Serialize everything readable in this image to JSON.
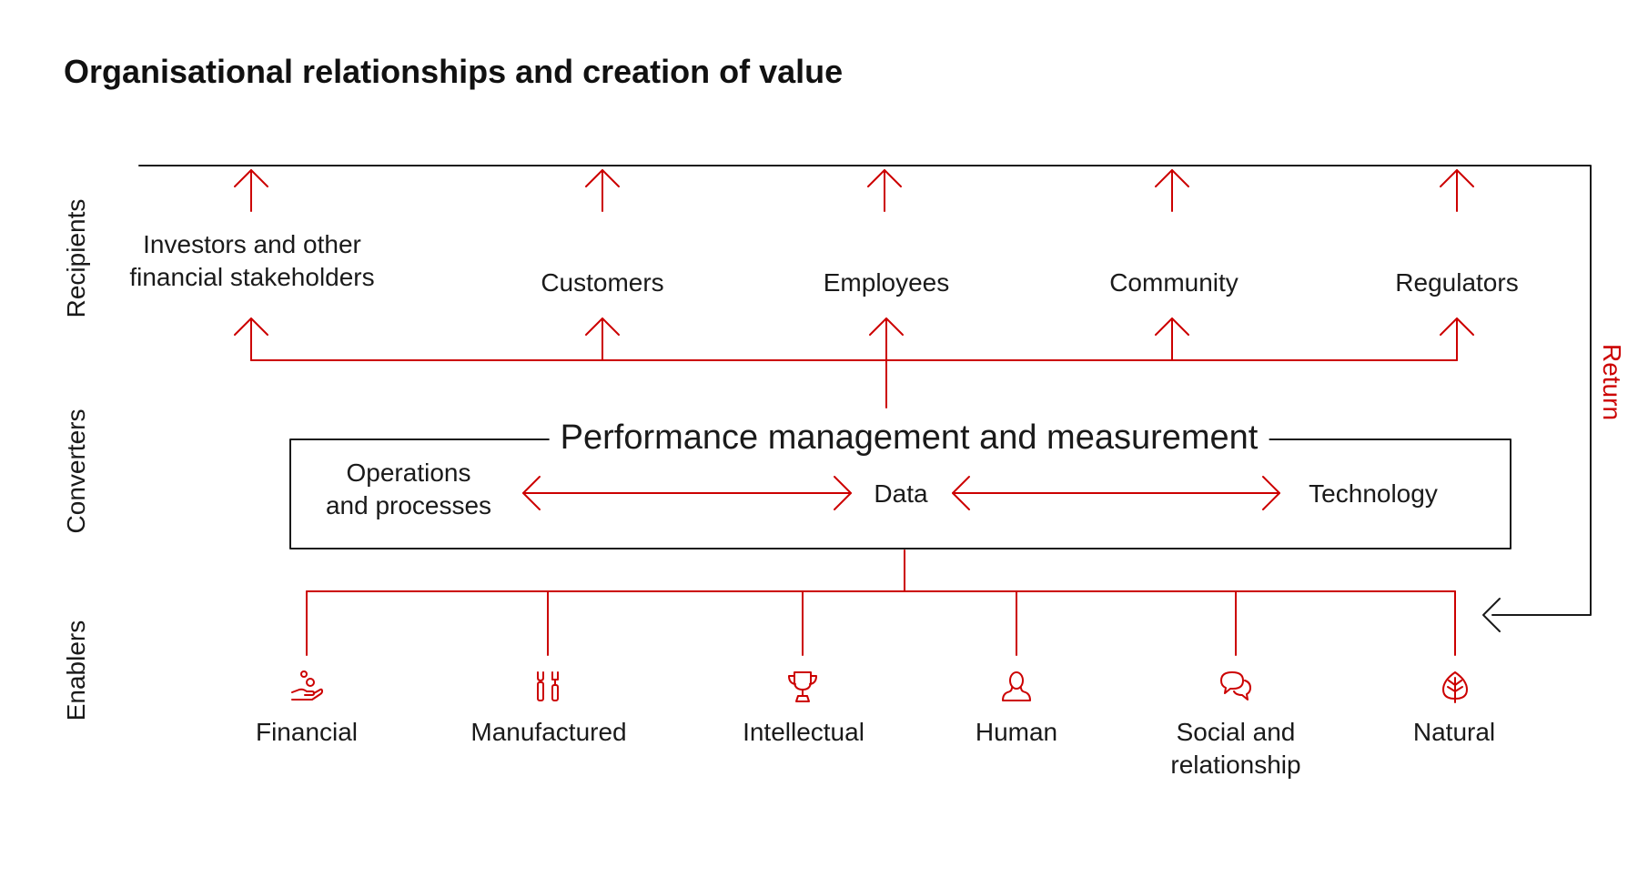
{
  "title": "Organisational relationships and creation of value",
  "side_labels": {
    "recipients": "Recipients",
    "converters": "Converters",
    "enablers": "Enablers",
    "return": "Return"
  },
  "recipients": [
    {
      "line1": "Investors and other",
      "line2": "financial stakeholders"
    },
    {
      "line1": "Customers"
    },
    {
      "line1": "Employees"
    },
    {
      "line1": "Community"
    },
    {
      "line1": "Regulators"
    }
  ],
  "converters": {
    "box_title": "Performance management and measurement",
    "operations": {
      "line1": "Operations",
      "line2": "and processes"
    },
    "data": "Data",
    "technology": "Technology"
  },
  "enablers": [
    {
      "line1": "Financial",
      "icon": "hand-coins-icon"
    },
    {
      "line1": "Manufactured",
      "icon": "tools-icon"
    },
    {
      "line1": "Intellectual",
      "icon": "trophy-icon"
    },
    {
      "line1": "Human",
      "icon": "person-icon"
    },
    {
      "line1": "Social and",
      "line2": "relationship",
      "icon": "speech-bubbles-icon"
    },
    {
      "line1": "Natural",
      "icon": "leaf-icon"
    }
  ],
  "colors": {
    "accent": "#cc0000",
    "ink": "#1a1a1a"
  }
}
